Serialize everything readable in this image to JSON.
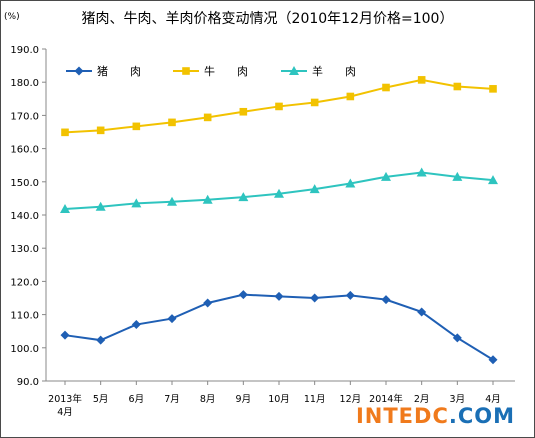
{
  "title": "猪肉、牛肉、羊肉价格变动情况（2010年12月价格=100）",
  "unit": "(%)",
  "watermark": {
    "part1": "INTEDC",
    "part2": ".COM"
  },
  "chart_data": {
    "type": "line",
    "ylim": [
      90,
      190
    ],
    "yticks": [
      "90.0",
      "100.0",
      "110.0",
      "120.0",
      "130.0",
      "140.0",
      "150.0",
      "160.0",
      "170.0",
      "180.0",
      "190.0"
    ],
    "categories": [
      [
        "2013年",
        "4月"
      ],
      [
        "5月"
      ],
      [
        "6月"
      ],
      [
        "7月"
      ],
      [
        "8月"
      ],
      [
        "9月"
      ],
      [
        "10月"
      ],
      [
        "11月"
      ],
      [
        "12月"
      ],
      [
        "2014年"
      ],
      [
        "2月"
      ],
      [
        "3月"
      ],
      [
        "4月"
      ]
    ],
    "legend_position": "top-left",
    "grid": false,
    "series": [
      {
        "name": "猪　　肉",
        "color": "#1f5fb4",
        "marker": "diamond",
        "values": [
          103.8,
          102.3,
          107.0,
          108.8,
          113.5,
          116.0,
          115.5,
          115.0,
          115.8,
          114.5,
          110.8,
          103.0,
          96.4
        ]
      },
      {
        "name": "牛　　肉",
        "color": "#f2c200",
        "marker": "square",
        "values": [
          164.9,
          165.5,
          166.7,
          167.9,
          169.4,
          171.1,
          172.7,
          173.9,
          175.7,
          178.4,
          180.7,
          178.7,
          178.0
        ]
      },
      {
        "name": "羊　　肉",
        "color": "#2ec4bf",
        "marker": "triangle",
        "values": [
          141.8,
          142.5,
          143.5,
          144.0,
          144.6,
          145.4,
          146.4,
          147.8,
          149.5,
          151.5,
          152.8,
          151.5,
          150.5
        ]
      }
    ]
  }
}
